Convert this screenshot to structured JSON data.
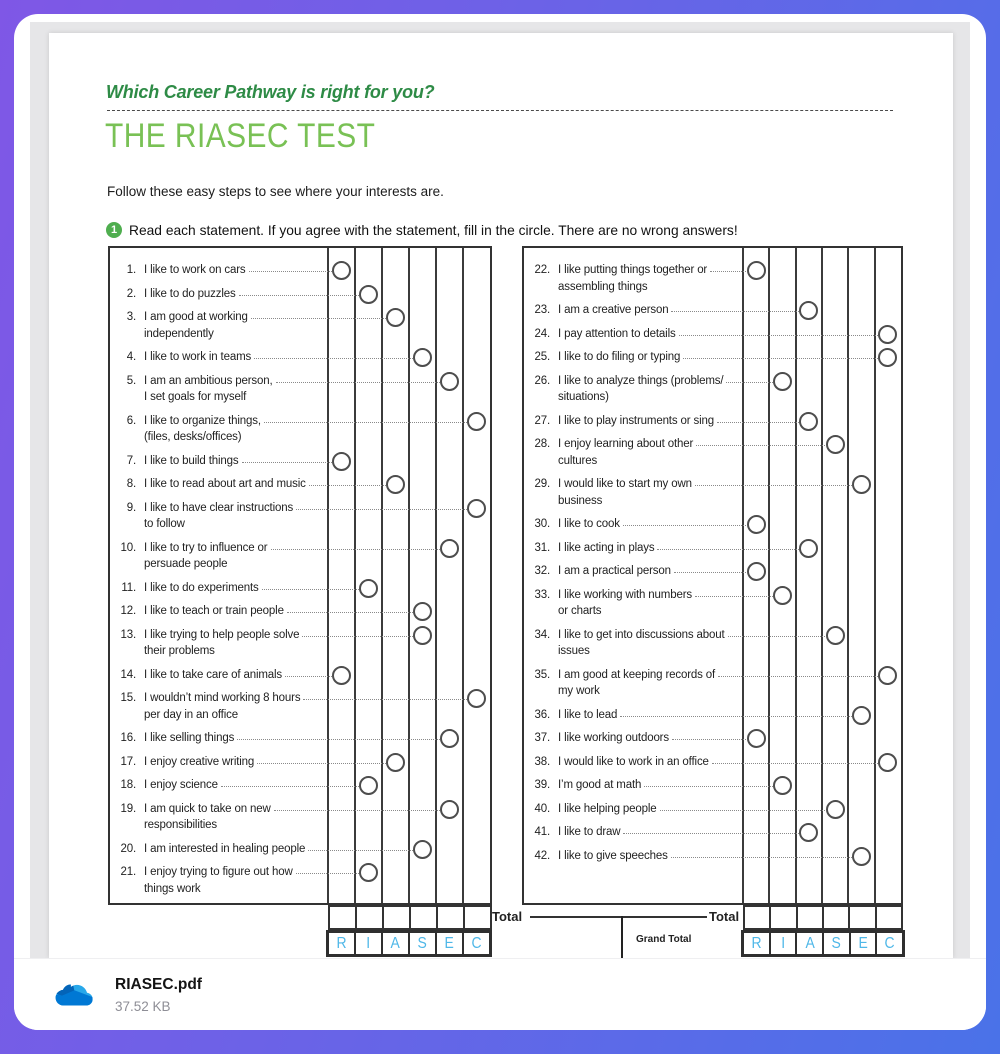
{
  "document": {
    "eyebrow": "Which Career Pathway is right for you?",
    "title": "THE RIASEC TEST",
    "intro": "Follow these easy steps to see where your interests are.",
    "step": {
      "number": "1",
      "text": "Read each statement. If you agree with the statement, fill in the circle. There are no wrong answers!"
    },
    "columns": [
      "R",
      "I",
      "A",
      "S",
      "E",
      "C"
    ],
    "items_left": [
      {
        "num": "1.",
        "text": "I like to work on cars",
        "text2": null,
        "col": 1,
        "letter": "R"
      },
      {
        "num": "2.",
        "text": "I like to do puzzles",
        "text2": null,
        "col": 2,
        "letter": "I"
      },
      {
        "num": "3.",
        "text": "I am good at working",
        "text2": "independently",
        "col": 3,
        "letter": "A"
      },
      {
        "num": "4.",
        "text": "I like to work in teams",
        "text2": null,
        "col": 4,
        "letter": "S"
      },
      {
        "num": "5.",
        "text": "I am an ambitious person,",
        "text2": "I set goals for myself",
        "col": 5,
        "letter": "E"
      },
      {
        "num": "6.",
        "text": "I like to organize things,",
        "text2": "(files, desks/offices)",
        "col": 6,
        "letter": "C"
      },
      {
        "num": "7.",
        "text": "I like to build things",
        "text2": null,
        "col": 1,
        "letter": "R"
      },
      {
        "num": "8.",
        "text": "I like to read about art and music",
        "text2": null,
        "col": 3,
        "letter": "A"
      },
      {
        "num": "9.",
        "text": "I like to have clear instructions",
        "text2": "to follow",
        "col": 6,
        "letter": "C"
      },
      {
        "num": "10.",
        "text": "I like to try to influence or",
        "text2": "persuade people",
        "col": 5,
        "letter": "E"
      },
      {
        "num": "11.",
        "text": "I like to do experiments",
        "text2": null,
        "col": 2,
        "letter": "I"
      },
      {
        "num": "12.",
        "text": "I like to teach or train people",
        "text2": null,
        "col": 4,
        "letter": "S"
      },
      {
        "num": "13.",
        "text": "I like trying to help people solve",
        "text2": "their problems",
        "col": 4,
        "letter": "S"
      },
      {
        "num": "14.",
        "text": "I like to take care of animals",
        "text2": null,
        "col": 1,
        "letter": "R"
      },
      {
        "num": "15.",
        "text": "I wouldn’t mind working 8 hours",
        "text2": "per day in an office",
        "col": 6,
        "letter": "C"
      },
      {
        "num": "16.",
        "text": "I like selling things",
        "text2": null,
        "col": 5,
        "letter": "E"
      },
      {
        "num": "17.",
        "text": "I enjoy creative writing",
        "text2": null,
        "col": 3,
        "letter": "A"
      },
      {
        "num": "18.",
        "text": "I enjoy science",
        "text2": null,
        "col": 2,
        "letter": "I"
      },
      {
        "num": "19.",
        "text": "I am quick to take on new",
        "text2": "responsibilities",
        "col": 5,
        "letter": "E"
      },
      {
        "num": "20.",
        "text": "I am interested in healing people",
        "text2": null,
        "col": 4,
        "letter": "S"
      },
      {
        "num": "21.",
        "text": "I enjoy trying to figure out how",
        "text2": "things work",
        "col": 2,
        "letter": "I"
      }
    ],
    "items_right": [
      {
        "num": "22.",
        "text": "I like putting things together or",
        "text2": "assembling things",
        "col": 1,
        "letter": "R"
      },
      {
        "num": "23.",
        "text": "I am a creative person",
        "text2": null,
        "col": 3,
        "letter": "A"
      },
      {
        "num": "24.",
        "text": "I pay attention to details",
        "text2": null,
        "col": 6,
        "letter": "C"
      },
      {
        "num": "25.",
        "text": "I like to do filing or typing",
        "text2": null,
        "col": 6,
        "letter": "C"
      },
      {
        "num": "26.",
        "text": "I like to analyze things (problems/",
        "text2": "situations)",
        "col": 2,
        "letter": "I"
      },
      {
        "num": "27.",
        "text": "I like to play instruments or sing",
        "text2": null,
        "col": 3,
        "letter": "A"
      },
      {
        "num": "28.",
        "text": "I enjoy learning about other",
        "text2": "cultures",
        "col": 4,
        "letter": "S"
      },
      {
        "num": "29.",
        "text": "I would like to start my own",
        "text2": "business",
        "col": 5,
        "letter": "E"
      },
      {
        "num": "30.",
        "text": "I like to cook",
        "text2": null,
        "col": 1,
        "letter": "R"
      },
      {
        "num": "31.",
        "text": "I like acting in plays",
        "text2": null,
        "col": 3,
        "letter": "A"
      },
      {
        "num": "32.",
        "text": "I am a practical person",
        "text2": null,
        "col": 1,
        "letter": "R"
      },
      {
        "num": "33.",
        "text": "I like working with numbers",
        "text2": "or charts",
        "col": 2,
        "letter": "I"
      },
      {
        "num": "34.",
        "text": "I like to get into discussions about",
        "text2": "issues",
        "col": 4,
        "letter": "S"
      },
      {
        "num": "35.",
        "text": "I am good at keeping records of",
        "text2": "my work",
        "col": 6,
        "letter": "C"
      },
      {
        "num": "36.",
        "text": "I like to lead",
        "text2": null,
        "col": 5,
        "letter": "E"
      },
      {
        "num": "37.",
        "text": "I like working outdoors",
        "text2": null,
        "col": 1,
        "letter": "R"
      },
      {
        "num": "38.",
        "text": "I would like to work in an office",
        "text2": null,
        "col": 6,
        "letter": "C"
      },
      {
        "num": "39.",
        "text": "I’m good at math",
        "text2": null,
        "col": 2,
        "letter": "I"
      },
      {
        "num": "40.",
        "text": "I like helping people",
        "text2": null,
        "col": 4,
        "letter": "S"
      },
      {
        "num": "41.",
        "text": "I like to draw",
        "text2": null,
        "col": 3,
        "letter": "A"
      },
      {
        "num": "42.",
        "text": "I like to give speeches",
        "text2": null,
        "col": 5,
        "letter": "E"
      }
    ],
    "totals": {
      "left_label": "Total",
      "right_label": "Total",
      "grand_label": "Grand Total"
    }
  },
  "attachment": {
    "filename": "RIASEC.pdf",
    "filesize": "37.52 KB",
    "icon": "onedrive-cloud-icon"
  },
  "colors": {
    "frame_gradient_start": "#7f57e6",
    "frame_gradient_end": "#4a72e8",
    "eyebrow_green": "#2e8b46",
    "title_green": "#79c155",
    "badge_green": "#4fae4f",
    "riasec_letter_blue": "#4eb7e8",
    "onedrive_blues": [
      "#0364b8",
      "#0078d4",
      "#28a8ea"
    ]
  }
}
